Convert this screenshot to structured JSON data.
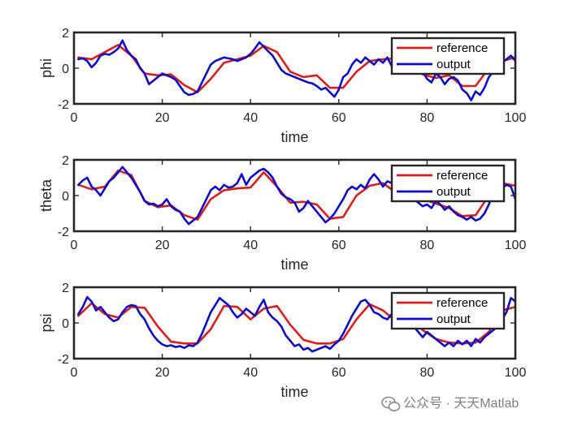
{
  "chart_data": [
    {
      "type": "line",
      "xlabel": "time",
      "ylabel": "phi",
      "xlim": [
        0,
        100
      ],
      "ylim": [
        -2,
        2
      ],
      "xticks": [
        "0",
        "20",
        "40",
        "60",
        "80",
        "100"
      ],
      "yticks": [
        "-2",
        "0",
        "2"
      ],
      "legend_position": "top-right",
      "series": [
        {
          "name": "reference",
          "color": "#dd1c1c",
          "x": [
            1,
            4,
            7,
            10,
            13,
            16,
            19,
            22,
            25,
            28,
            31,
            34,
            37,
            40,
            43,
            46,
            49,
            52,
            55,
            58,
            61,
            64,
            67,
            70,
            73,
            76,
            79,
            82,
            85,
            88,
            91,
            94,
            97,
            100
          ],
          "y": [
            0.6,
            0.5,
            0.9,
            1.3,
            0.7,
            -0.3,
            -0.4,
            -0.35,
            -0.95,
            -1.35,
            -0.6,
            0.3,
            0.5,
            0.7,
            1.25,
            0.9,
            -0.2,
            -0.5,
            -0.4,
            -1.1,
            -1.1,
            -0.2,
            0.4,
            0.5,
            0.55,
            0.95,
            -0.35,
            -0.55,
            -0.4,
            -1.0,
            -1.0,
            0.0,
            0.4,
            0.6
          ]
        },
        {
          "name": "output",
          "color": "#0d0dc8",
          "x": [
            1,
            2,
            3,
            4,
            5,
            6,
            7,
            8,
            9,
            10,
            11,
            12,
            13,
            14,
            15,
            16,
            17,
            18,
            19,
            20,
            21,
            22,
            23,
            24,
            25,
            26,
            27,
            28,
            29,
            30,
            31,
            32,
            33,
            34,
            35,
            36,
            37,
            38,
            39,
            40,
            41,
            42,
            43,
            44,
            45,
            46,
            47,
            48,
            49,
            50,
            51,
            52,
            53,
            54,
            55,
            56,
            57,
            58,
            59,
            60,
            61,
            62,
            63,
            64,
            65,
            66,
            67,
            68,
            69,
            70,
            71,
            72,
            73,
            74,
            75,
            76,
            77,
            78,
            79,
            80,
            81,
            82,
            83,
            84,
            85,
            86,
            87,
            88,
            89,
            90,
            91,
            92,
            93,
            94,
            95,
            96,
            97,
            98,
            99,
            100
          ],
          "y": [
            0.5,
            0.55,
            0.4,
            0.05,
            0.3,
            0.7,
            0.8,
            0.75,
            0.9,
            1.1,
            1.55,
            1.0,
            0.7,
            0.5,
            0.0,
            -0.3,
            -0.9,
            -0.7,
            -0.5,
            -0.3,
            -0.4,
            -0.5,
            -0.65,
            -1.0,
            -1.35,
            -1.5,
            -1.45,
            -1.3,
            -0.8,
            -0.3,
            0.2,
            0.4,
            0.5,
            0.6,
            0.55,
            0.5,
            0.4,
            0.5,
            0.6,
            0.8,
            1.1,
            1.45,
            1.2,
            0.95,
            0.7,
            0.3,
            -0.1,
            -0.3,
            -0.4,
            -0.5,
            -0.6,
            -0.7,
            -0.8,
            -0.85,
            -1.0,
            -1.2,
            -1.1,
            -1.35,
            -1.6,
            -1.2,
            -0.5,
            -0.3,
            0.2,
            0.5,
            0.3,
            0.6,
            0.4,
            0.2,
            0.5,
            0.3,
            0.6,
            0.1,
            0.9,
            0.7,
            0.4,
            0.3,
            0.6,
            0.2,
            -0.2,
            -0.6,
            -0.8,
            -0.3,
            -0.5,
            -0.9,
            -0.6,
            -0.5,
            -0.7,
            -1.2,
            -1.4,
            -1.8,
            -1.3,
            -1.5,
            -1.1,
            -0.5,
            -0.2,
            0.1,
            0.3,
            0.5,
            0.7,
            0.4
          ]
        }
      ]
    },
    {
      "type": "line",
      "xlabel": "time",
      "ylabel": "theta",
      "xlim": [
        0,
        100
      ],
      "ylim": [
        -2,
        2
      ],
      "xticks": [
        "0",
        "20",
        "40",
        "60",
        "80",
        "100"
      ],
      "yticks": [
        "-2",
        "0",
        "2"
      ],
      "legend_position": "top-right",
      "series": [
        {
          "name": "reference",
          "color": "#dd1c1c",
          "x": [
            1,
            4,
            7,
            10,
            13,
            16,
            19,
            22,
            25,
            28,
            31,
            34,
            37,
            40,
            43,
            46,
            49,
            52,
            55,
            58,
            61,
            64,
            67,
            70,
            73,
            76,
            79,
            82,
            85,
            88,
            91,
            94,
            97,
            100
          ],
          "y": [
            0.6,
            0.35,
            0.5,
            1.4,
            1.15,
            -0.3,
            -0.65,
            -0.55,
            -1.1,
            -1.35,
            -0.2,
            0.3,
            0.4,
            0.45,
            1.3,
            0.5,
            -0.4,
            -0.35,
            -0.5,
            -1.3,
            -1.2,
            0.0,
            0.55,
            0.7,
            0.15,
            0.7,
            -0.2,
            -0.45,
            -0.7,
            -1.15,
            -1.1,
            0.0,
            0.7,
            0.55
          ]
        },
        {
          "name": "output",
          "color": "#0d0dc8",
          "x": [
            1,
            2,
            3,
            4,
            5,
            6,
            7,
            8,
            9,
            10,
            11,
            12,
            13,
            14,
            15,
            16,
            17,
            18,
            19,
            20,
            21,
            22,
            23,
            24,
            25,
            26,
            27,
            28,
            29,
            30,
            31,
            32,
            33,
            34,
            35,
            36,
            37,
            38,
            39,
            40,
            41,
            42,
            43,
            44,
            45,
            46,
            47,
            48,
            49,
            50,
            51,
            52,
            53,
            54,
            55,
            56,
            57,
            58,
            59,
            60,
            61,
            62,
            63,
            64,
            65,
            66,
            67,
            68,
            69,
            70,
            71,
            72,
            73,
            74,
            75,
            76,
            77,
            78,
            79,
            80,
            81,
            82,
            83,
            84,
            85,
            86,
            87,
            88,
            89,
            90,
            91,
            92,
            93,
            94,
            95,
            96,
            97,
            98,
            99,
            100
          ],
          "y": [
            0.6,
            0.85,
            1.0,
            0.5,
            0.3,
            0.0,
            0.4,
            0.8,
            1.0,
            1.3,
            1.6,
            1.3,
            1.0,
            0.6,
            0.2,
            -0.3,
            -0.5,
            -0.45,
            -0.6,
            -0.5,
            -0.2,
            -0.6,
            -0.8,
            -0.9,
            -1.3,
            -1.6,
            -1.4,
            -1.2,
            -0.7,
            -0.2,
            0.3,
            0.5,
            0.3,
            0.6,
            0.45,
            0.5,
            0.7,
            1.2,
            0.6,
            1.0,
            1.2,
            1.4,
            1.5,
            1.3,
            1.0,
            0.5,
            0.1,
            -0.1,
            -0.2,
            -0.4,
            -0.9,
            -0.7,
            -0.3,
            -0.6,
            -0.9,
            -1.2,
            -1.5,
            -1.3,
            -1.0,
            -0.6,
            -0.2,
            0.3,
            0.5,
            0.35,
            0.6,
            0.4,
            0.9,
            1.2,
            0.9,
            0.5,
            0.8,
            0.7,
            0.9,
            0.5,
            0.4,
            0.3,
            -0.2,
            -0.4,
            -0.6,
            -0.5,
            -0.7,
            -0.3,
            -0.5,
            -0.8,
            -0.6,
            -0.9,
            -1.1,
            -1.2,
            -1.35,
            -1.2,
            -1.4,
            -1.3,
            -1.0,
            -0.5,
            0.1,
            0.3,
            0.4,
            0.6,
            0.5,
            -0.2
          ]
        }
      ]
    },
    {
      "type": "line",
      "xlabel": "time",
      "ylabel": "psi",
      "xlim": [
        0,
        100
      ],
      "ylim": [
        -2,
        2
      ],
      "xticks": [
        "0",
        "20",
        "40",
        "60",
        "80",
        "100"
      ],
      "yticks": [
        "-2",
        "0",
        "2"
      ],
      "legend_position": "top-right",
      "series": [
        {
          "name": "reference",
          "color": "#dd1c1c",
          "x": [
            1,
            4,
            7,
            10,
            13,
            16,
            19,
            22,
            25,
            28,
            31,
            34,
            37,
            40,
            43,
            46,
            49,
            52,
            55,
            58,
            61,
            64,
            67,
            70,
            73,
            76,
            79,
            82,
            85,
            88,
            91,
            94,
            97,
            100
          ],
          "y": [
            0.4,
            1.1,
            0.5,
            0.3,
            0.9,
            0.85,
            -0.2,
            -1.05,
            -1.15,
            -1.15,
            -0.35,
            0.95,
            0.9,
            0.2,
            0.8,
            0.95,
            -0.1,
            -0.95,
            -1.15,
            -1.15,
            -0.9,
            0.2,
            1.05,
            0.7,
            0.1,
            0.55,
            -0.4,
            -0.9,
            -1.1,
            -1.15,
            -1.1,
            -0.5,
            0.7,
            0.9
          ]
        },
        {
          "name": "output",
          "color": "#0d0dc8",
          "x": [
            1,
            2,
            3,
            4,
            5,
            6,
            7,
            8,
            9,
            10,
            11,
            12,
            13,
            14,
            15,
            16,
            17,
            18,
            19,
            20,
            21,
            22,
            23,
            24,
            25,
            26,
            27,
            28,
            29,
            30,
            31,
            32,
            33,
            34,
            35,
            36,
            37,
            38,
            39,
            40,
            41,
            42,
            43,
            44,
            45,
            46,
            47,
            48,
            49,
            50,
            51,
            52,
            53,
            54,
            55,
            56,
            57,
            58,
            59,
            60,
            61,
            62,
            63,
            64,
            65,
            66,
            67,
            68,
            69,
            70,
            71,
            72,
            73,
            74,
            75,
            76,
            77,
            78,
            79,
            80,
            81,
            82,
            83,
            84,
            85,
            86,
            87,
            88,
            89,
            90,
            91,
            92,
            93,
            94,
            95,
            96,
            97,
            98,
            99,
            100
          ],
          "y": [
            0.5,
            0.9,
            1.45,
            1.2,
            0.7,
            0.9,
            0.6,
            0.3,
            0.1,
            0.2,
            0.6,
            0.9,
            1.0,
            0.95,
            0.5,
            0.2,
            -0.3,
            -0.7,
            -1.0,
            -1.2,
            -1.3,
            -1.25,
            -1.35,
            -1.3,
            -1.4,
            -1.25,
            -1.3,
            -1.1,
            -0.6,
            0.0,
            0.6,
            1.0,
            1.4,
            1.2,
            1.0,
            0.6,
            0.3,
            0.5,
            0.8,
            0.6,
            0.4,
            0.9,
            1.3,
            0.6,
            0.3,
            0.1,
            -0.2,
            -0.7,
            -1.0,
            -1.3,
            -1.2,
            -1.5,
            -1.4,
            -1.6,
            -1.5,
            -1.4,
            -1.3,
            -1.45,
            -1.2,
            -1.0,
            -0.6,
            -0.1,
            0.4,
            0.8,
            1.2,
            1.3,
            1.0,
            0.6,
            0.5,
            0.3,
            0.2,
            0.5,
            0.1,
            0.3,
            0.4,
            0.0,
            -0.2,
            -0.5,
            -0.8,
            -0.5,
            -0.7,
            -0.9,
            -1.1,
            -1.3,
            -1.1,
            -1.3,
            -1.0,
            -1.2,
            -1.0,
            -1.3,
            -0.9,
            -1.1,
            -0.8,
            -0.6,
            -0.4,
            -0.2,
            0.2,
            0.6,
            1.4,
            1.2
          ]
        }
      ]
    }
  ],
  "watermark": {
    "icon": "wechat-icon",
    "text": "公众号 · 天天Matlab"
  }
}
